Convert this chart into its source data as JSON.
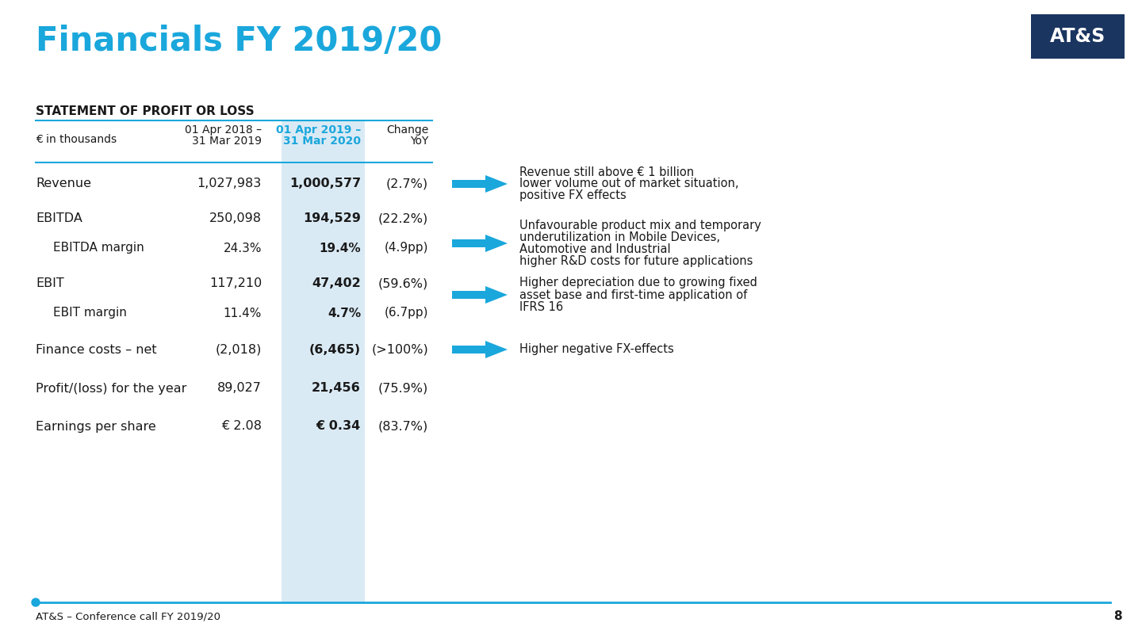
{
  "title": "Financials FY 2019/20",
  "title_color": "#1aa7dc",
  "title_fontsize": 30,
  "section_header": "STATEMENT OF PROFIT OR LOSS",
  "col_header_1a": "01 Apr 2018 –",
  "col_header_1b": "31 Mar 2019",
  "col_header_2a": "01 Apr 2019 –",
  "col_header_2b": "31 Mar 2020",
  "col_header_3a": "Change",
  "col_header_3b": "YoY",
  "col_header_2_color": "#1aa7dc",
  "euro_label": "€ in thousands",
  "rows": [
    {
      "label": "Revenue",
      "indent": false,
      "val1": "1,027,983",
      "val2": "1,000,577",
      "val3": "(2.7%)",
      "arrow": true,
      "note": "Revenue still above € 1 billion\nlower volume out of market situation,\npositive FX effects"
    },
    {
      "label": "EBITDA",
      "indent": false,
      "val1": "250,098",
      "val2": "194,529",
      "val3": "(22.2%)",
      "arrow": true,
      "note": "Unfavourable product mix and temporary\nunderutilization in Mobile Devices,\nAutomotive and Industrial\nhigher R&D costs for future applications"
    },
    {
      "label": "EBITDA margin",
      "indent": true,
      "val1": "24.3%",
      "val2": "19.4%",
      "val3": "(4.9pp)",
      "arrow": false,
      "note": ""
    },
    {
      "label": "EBIT",
      "indent": false,
      "val1": "117,210",
      "val2": "47,402",
      "val3": "(59.6%)",
      "arrow": true,
      "note": "Higher depreciation due to growing fixed\nasset base and first-time application of\nIFRS 16"
    },
    {
      "label": "EBIT margin",
      "indent": true,
      "val1": "11.4%",
      "val2": "4.7%",
      "val3": "(6.7pp)",
      "arrow": false,
      "note": ""
    },
    {
      "label": "Finance costs – net",
      "indent": false,
      "val1": "(2,018)",
      "val2": "(6,465)",
      "val3": "(>100%)",
      "arrow": true,
      "note": "Higher negative FX-effects"
    },
    {
      "label": "Profit/(loss) for the year",
      "indent": false,
      "val1": "89,027",
      "val2": "21,456",
      "val3": "(75.9%)",
      "arrow": false,
      "note": ""
    },
    {
      "label": "Earnings per share",
      "indent": false,
      "val1": "€ 2.08",
      "val2": "€ 0.34",
      "val3": "(83.7%)",
      "arrow": false,
      "note": ""
    }
  ],
  "footer": "AT&S – Conference call FY 2019/20",
  "page_number": "8",
  "bg_color": "#ffffff",
  "highlight_col_bg": "#daeaf5",
  "arrow_color": "#1aa7dc",
  "logo_bg": "#1a3560",
  "logo_text": "AT&S",
  "separator_color": "#1aa7dc",
  "header_line_color": "#1aa7dc",
  "text_color": "#1a1a1a",
  "note_fontsize": 10.5,
  "row_label_fontsize": 11.5,
  "val_fontsize": 11.5,
  "header_fontsize": 10,
  "section_fontsize": 11
}
